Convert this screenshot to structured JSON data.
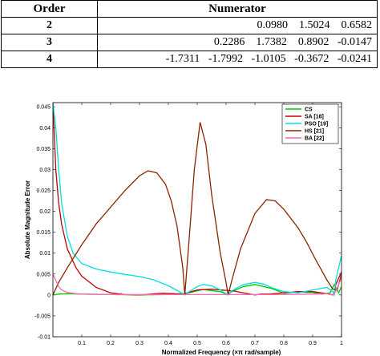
{
  "table": {
    "headers": [
      "Order",
      "Numerator"
    ],
    "rows": [
      {
        "order": "2",
        "numerator": "0.0980    1.5024    0.6582"
      },
      {
        "order": "3",
        "numerator": "0.2286    1.7382    0.8902   -0.0147"
      },
      {
        "order": "4",
        "numerator": "-1.7311   -1.7992   -1.0105   -0.3672   -0.0241"
      }
    ]
  },
  "chart_data": {
    "type": "line",
    "xlabel": "Normalized Frequency (×π rad/sample)",
    "ylabel": "Absolute Magnitude Error",
    "xlim": [
      0,
      1
    ],
    "ylim": [
      -0.01,
      0.046
    ],
    "xticks": [
      "0.1",
      "0.2",
      "0.3",
      "0.4",
      "0.5",
      "0.6",
      "0.7",
      "0.8",
      "0.9",
      "1"
    ],
    "xtick_values": [
      0.1,
      0.2,
      0.3,
      0.4,
      0.5,
      0.6,
      0.7,
      0.8,
      0.9,
      1.0
    ],
    "yticks": [
      "-0.01",
      "-0.005",
      "0",
      "0.005",
      "0.01",
      "0.015",
      "0.02",
      "0.025",
      "0.03",
      "0.035",
      "0.04",
      "0.045"
    ],
    "ytick_values": [
      -0.01,
      -0.005,
      0,
      0.005,
      0.01,
      0.015,
      0.02,
      0.025,
      0.03,
      0.035,
      0.04,
      0.045
    ],
    "legend_position": "top-right",
    "series": [
      {
        "name": "CS",
        "color": "#00c800",
        "x": [
          0,
          0.02,
          0.05,
          0.1,
          0.2,
          0.3,
          0.4,
          0.45,
          0.457,
          0.47,
          0.52,
          0.58,
          0.6,
          0.607,
          0.62,
          0.66,
          0.7,
          0.76,
          0.8,
          0.85,
          0.9,
          0.93,
          0.96,
          0.975,
          0.99,
          1.0
        ],
        "y": [
          0.0,
          0.0002,
          0.0003,
          0.0002,
          0.0001,
          0.0,
          0.0001,
          0.0004,
          0.0,
          0.0005,
          0.0013,
          0.0008,
          0.0002,
          0.0,
          0.0008,
          0.002,
          0.0025,
          0.0015,
          0.0004,
          0.0007,
          0.0006,
          0.0002,
          0.0005,
          0.0025,
          0.0005,
          0.002
        ]
      },
      {
        "name": "SA [18]",
        "color": "#c00000",
        "x": [
          0.0,
          0.01,
          0.02,
          0.03,
          0.05,
          0.08,
          0.1,
          0.15,
          0.2,
          0.25,
          0.3,
          0.34,
          0.38,
          0.42,
          0.45,
          0.46,
          0.5,
          0.55,
          0.6,
          0.63,
          0.66,
          0.7,
          0.72,
          0.75,
          0.8,
          0.85,
          0.9,
          0.95,
          0.97,
          0.975,
          0.98,
          1.0
        ],
        "y": [
          0.046,
          0.03,
          0.022,
          0.017,
          0.011,
          0.0065,
          0.0045,
          0.0018,
          0.0005,
          0.0001,
          0.0,
          0.0002,
          0.0004,
          0.0003,
          0.0001,
          0.0004,
          0.0012,
          0.0014,
          0.0011,
          0.0009,
          0.0005,
          0.0,
          0.0002,
          0.0002,
          0.0005,
          0.0008,
          0.0008,
          0.0003,
          0.0,
          0.0005,
          0.0025,
          0.0055
        ]
      },
      {
        "name": "PSO [19]",
        "color": "#00e0e0",
        "x": [
          0.0,
          0.01,
          0.02,
          0.03,
          0.05,
          0.07,
          0.1,
          0.15,
          0.2,
          0.25,
          0.3,
          0.35,
          0.4,
          0.43,
          0.45,
          0.457,
          0.47,
          0.5,
          0.52,
          0.55,
          0.58,
          0.6,
          0.607,
          0.62,
          0.66,
          0.7,
          0.73,
          0.76,
          0.8,
          0.85,
          0.9,
          0.95,
          0.97,
          0.975,
          0.98,
          1.0
        ],
        "y": [
          0.046,
          0.04,
          0.03,
          0.022,
          0.014,
          0.01,
          0.0075,
          0.0062,
          0.0055,
          0.0049,
          0.0044,
          0.0036,
          0.0022,
          0.0011,
          0.0003,
          0.0,
          0.0007,
          0.002,
          0.0025,
          0.0022,
          0.0012,
          0.0003,
          0.0,
          0.001,
          0.0025,
          0.003,
          0.0026,
          0.0017,
          0.0008,
          0.0005,
          0.0012,
          0.0018,
          0.0008,
          0.0,
          0.0035,
          0.0095
        ]
      },
      {
        "name": "HS [21]",
        "color": "#8b2500",
        "x": [
          0.0,
          0.02,
          0.05,
          0.1,
          0.15,
          0.2,
          0.25,
          0.3,
          0.33,
          0.36,
          0.39,
          0.41,
          0.43,
          0.45,
          0.457,
          0.47,
          0.49,
          0.51,
          0.53,
          0.55,
          0.58,
          0.6,
          0.607,
          0.62,
          0.65,
          0.7,
          0.74,
          0.77,
          0.8,
          0.85,
          0.88,
          0.91,
          0.93,
          0.95,
          0.97,
          0.985,
          1.0
        ],
        "y": [
          0.0,
          0.003,
          0.0065,
          0.012,
          0.017,
          0.021,
          0.025,
          0.0285,
          0.0297,
          0.0292,
          0.0265,
          0.0225,
          0.0165,
          0.0065,
          0.0,
          0.0115,
          0.03,
          0.0413,
          0.036,
          0.024,
          0.01,
          0.003,
          0.0,
          0.0035,
          0.011,
          0.0195,
          0.0228,
          0.0225,
          0.0205,
          0.016,
          0.0125,
          0.0085,
          0.006,
          0.0035,
          0.0014,
          0.0012,
          0.005
        ]
      },
      {
        "name": "BA [22]",
        "color": "#ff69b4",
        "x": [
          0.0,
          0.01,
          0.02,
          0.03,
          0.05,
          0.08,
          0.1,
          0.2,
          0.4,
          0.6,
          0.8,
          0.9,
          0.95,
          0.96,
          0.97,
          0.98,
          0.99,
          1.0
        ],
        "y": [
          0.005,
          0.0035,
          0.002,
          0.0012,
          0.0006,
          0.0003,
          0.0002,
          0.0001,
          0.0001,
          0.0001,
          0.0001,
          0.0002,
          0.0003,
          0.0001,
          0.0,
          0.0008,
          0.0025,
          0.004
        ]
      }
    ]
  }
}
